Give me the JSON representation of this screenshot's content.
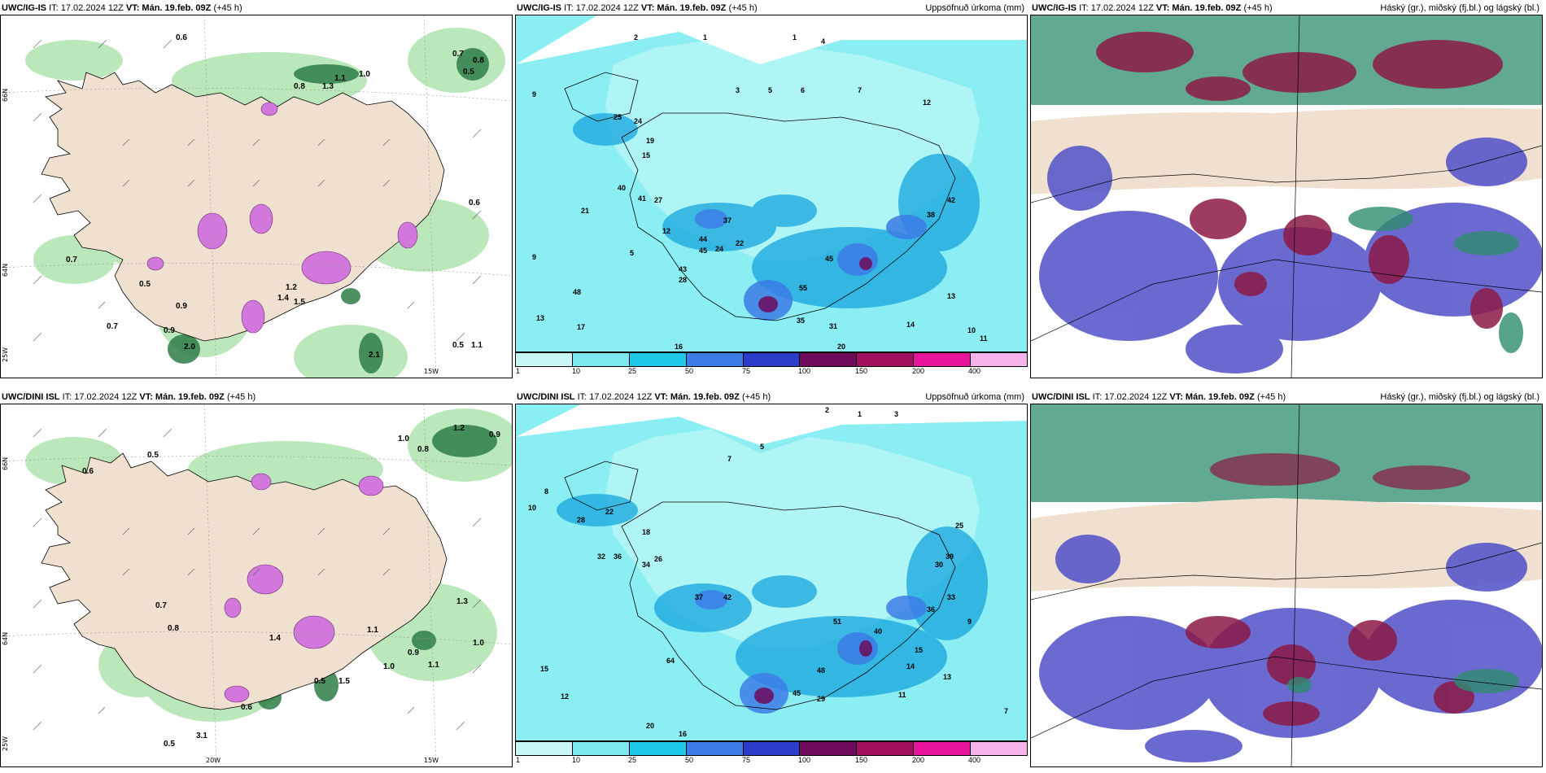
{
  "panels": [
    {
      "model": "UWC/IG-IS",
      "it": "IT: 17.02.2024 12Z",
      "vt": "VT: Mán. 19.feb. 09Z",
      "lead": "(+45 h)",
      "right": ""
    },
    {
      "model": "UWC/IG-IS",
      "it": "IT: 17.02.2024 12Z",
      "vt": "VT: Mán. 19.feb. 09Z",
      "lead": "(+45 h)",
      "right": "Uppsöfnuð úrkoma (mm)"
    },
    {
      "model": "UWC/IG-IS",
      "it": "IT: 17.02.2024 12Z",
      "vt": "VT: Mán. 19.feb. 09Z",
      "lead": "(+45 h)",
      "right": "Háský (gr.), miðský (fj.bl.) og lágský (bl.)"
    },
    {
      "model": "UWC/DINI ISL",
      "it": "IT: 17.02.2024 12Z",
      "vt": "VT: Mán. 19.feb. 09Z",
      "lead": "(+45 h)",
      "right": ""
    },
    {
      "model": "UWC/DINI ISL",
      "it": "IT: 17.02.2024 12Z",
      "vt": "VT: Mán. 19.feb. 09Z",
      "lead": "(+45 h)",
      "right": "Uppsöfnuð úrkoma (mm)"
    },
    {
      "model": "UWC/DINI ISL",
      "it": "IT: 17.02.2024 12Z",
      "vt": "VT: Mán. 19.feb. 09Z",
      "lead": "(+45 h)",
      "right": "Háský (gr.), miðský (fj.bl.) og lágský (bl.)"
    }
  ],
  "colorbar": {
    "ticks": [
      "1",
      "10",
      "25",
      "50",
      "75",
      "100",
      "150",
      "200",
      "400"
    ],
    "colors": [
      "#c8f5f5",
      "#7ee8f0",
      "#1ec8e6",
      "#3c7ce6",
      "#2c3cc8",
      "#6e0a5a",
      "#a0105e",
      "#e6149b",
      "#f7b4ec"
    ]
  },
  "axis_labels": {
    "lat66": "66N",
    "lat64": "64N",
    "lon25": "25W",
    "lon20": "20W",
    "lon15": "15W"
  },
  "precip_values_top": [
    "2",
    "1",
    "1",
    "4",
    "3",
    "5",
    "6",
    "7",
    "12",
    "9",
    "25",
    "24",
    "15",
    "19",
    "40",
    "27",
    "41",
    "12",
    "37",
    "44",
    "45",
    "22",
    "24",
    "43",
    "28",
    "35",
    "55",
    "45",
    "48",
    "21",
    "38",
    "42",
    "13",
    "14",
    "17",
    "13",
    "16",
    "31",
    "20",
    "11",
    "10",
    "9",
    "5"
  ],
  "precip_values_bottom": [
    "2",
    "1",
    "3",
    "5",
    "7",
    "8",
    "10",
    "22",
    "28",
    "18",
    "32",
    "36",
    "34",
    "26",
    "37",
    "42",
    "51",
    "13",
    "15",
    "45",
    "29",
    "48",
    "64",
    "40",
    "36",
    "33",
    "25",
    "39",
    "30",
    "15",
    "14",
    "20",
    "16",
    "12",
    "11",
    "9",
    "7"
  ],
  "wind_values_top": [
    "0.6",
    "0.7",
    "0.8",
    "0.5",
    "1.0",
    "0.8",
    "0.6",
    "1.3",
    "1.1",
    "0.7",
    "0.5",
    "0.9",
    "2.0",
    "1.2",
    "1.4",
    "1.5",
    "0.9",
    "0.7",
    "1.1",
    "2.1",
    "0.5"
  ],
  "wind_values_bottom": [
    "1.2",
    "0.9",
    "1.0",
    "0.8",
    "0.5",
    "0.6",
    "1.3",
    "1.1",
    "0.7",
    "0.8",
    "1.4",
    "1.0",
    "0.5",
    "0.6",
    "1.1",
    "0.9",
    "0.5",
    "3.1",
    "1.5",
    "1.0"
  ],
  "colors": {
    "land": "#efe0d0",
    "coast": "#000000",
    "sea_precip": "#b4f5f5",
    "precip_light": "#59e6f0",
    "precip_mid": "#1eaadf",
    "green_light": "#b4e6b4",
    "green_dark": "#1e6e3c",
    "magenta": "#d278dc",
    "cloud_high": "#2e8c6e",
    "cloud_mid": "#8c1a46",
    "cloud_low": "#5050c8"
  }
}
